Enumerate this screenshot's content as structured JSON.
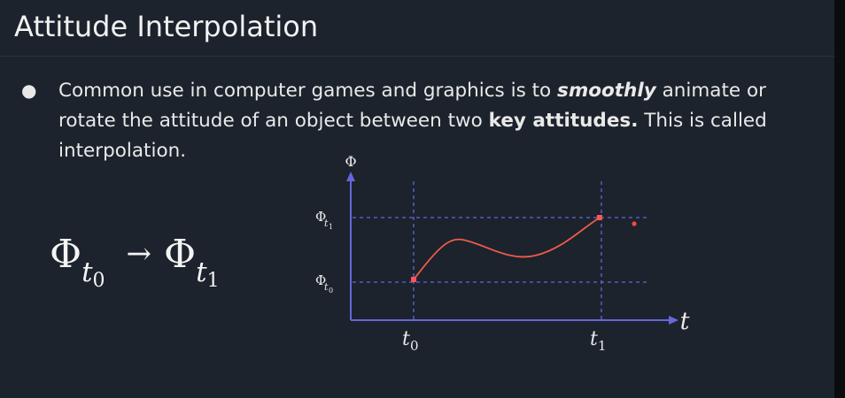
{
  "slide": {
    "title": "Attitude Interpolation",
    "bullet_symbol": "●",
    "body": {
      "part1": "Common use in computer games and graphics is to ",
      "emphasis": "smoothly",
      "part2": " animate or rotate the attitude of an object between two ",
      "strong": "key attitudes.",
      "part3": " This is called interpolation."
    },
    "formula": {
      "phi": "Φ",
      "sub_start": "t",
      "sub_start_index": "0",
      "arrow": "→",
      "sub_end": "t",
      "sub_end_index": "1"
    }
  },
  "diagram": {
    "y_axis_symbol": "Φ",
    "x_axis_symbol": "t",
    "y_tick_phi": "Φ",
    "y_tick_t": "t",
    "y_tick_low_index": "0",
    "y_tick_high_index": "1",
    "x_tick_t": "t",
    "x_tick_start_index": "0",
    "x_tick_end_index": "1",
    "colors": {
      "axes": "#6666dd",
      "guides": "#5a6ae0",
      "curve": "#ef5a4a",
      "points": "#ff5555",
      "background": "#1c232c"
    }
  }
}
